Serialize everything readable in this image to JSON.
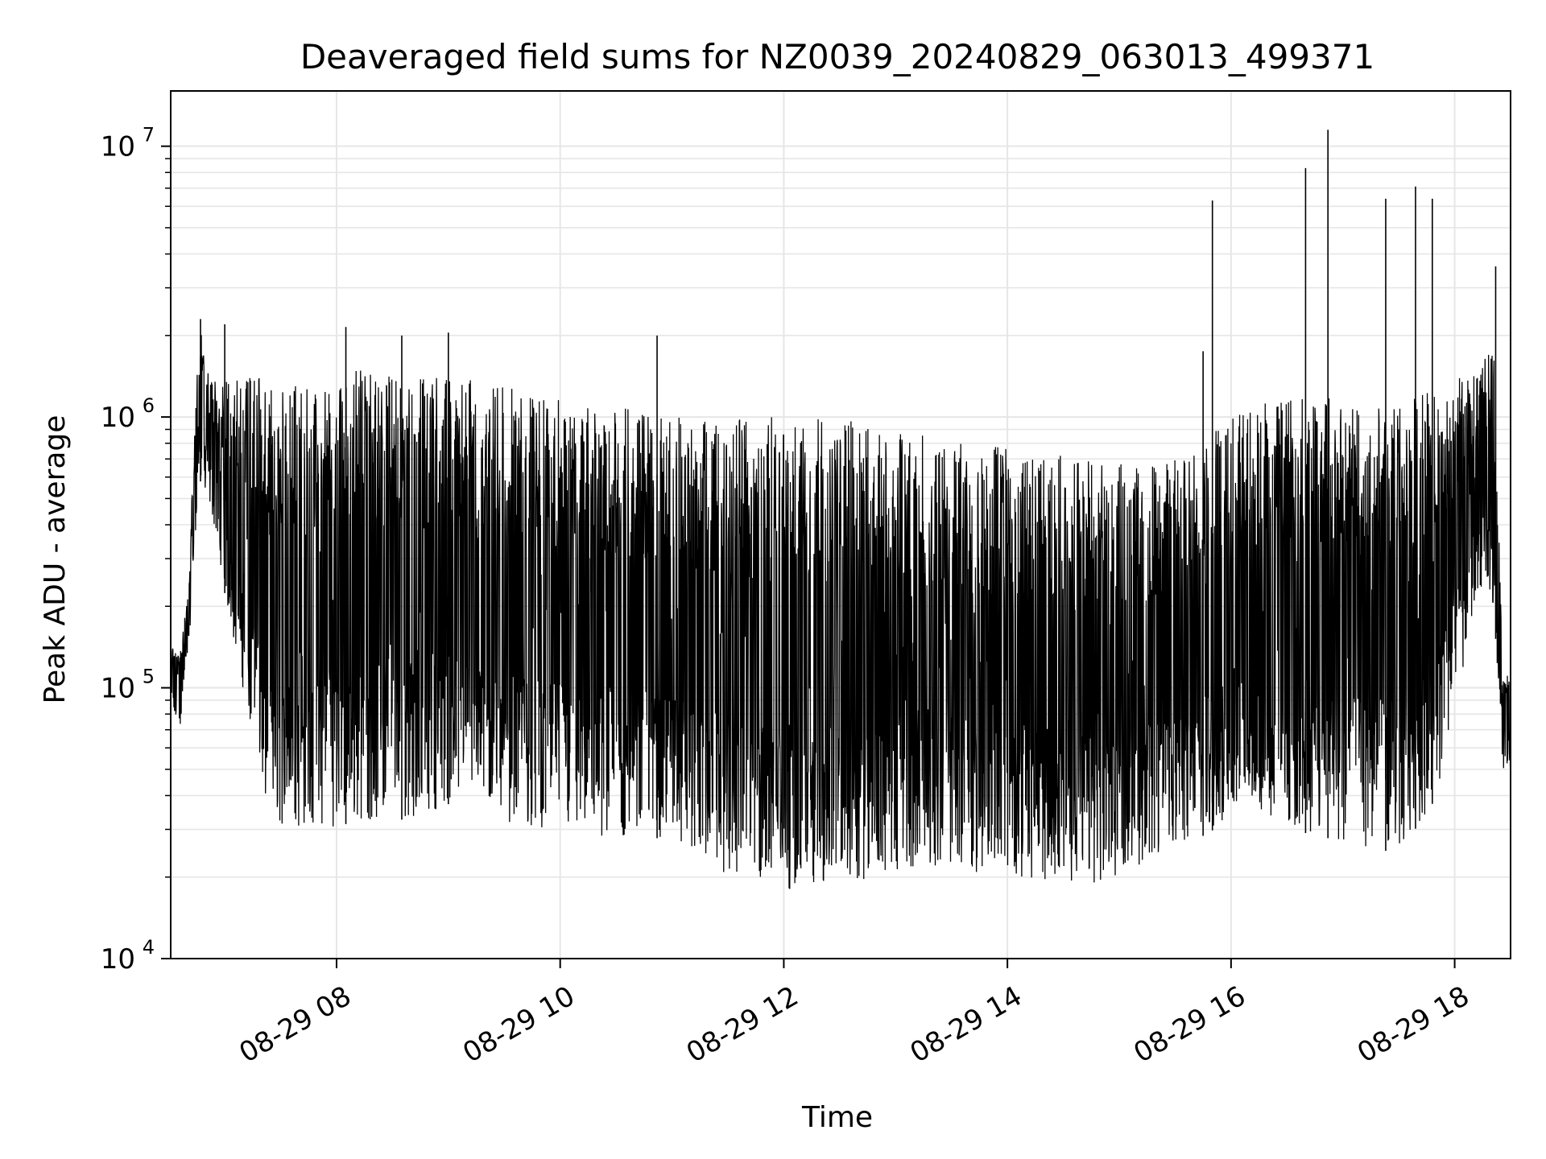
{
  "chart_data": {
    "type": "line",
    "title": "Deaveraged field sums for NZ0039_20240829_063013_499371",
    "xlabel": "Time",
    "ylabel": "Peak ADU - average",
    "yscale": "log",
    "ylim": [
      10000,
      16000000
    ],
    "xlim": [
      "2024-08-29 06:31",
      "2024-08-29 18:30"
    ],
    "grid": true,
    "line_color": "#000000",
    "x_ticks": [
      {
        "value": "2024-08-29 08:00",
        "label": "08-29 08"
      },
      {
        "value": "2024-08-29 10:00",
        "label": "08-29 10"
      },
      {
        "value": "2024-08-29 12:00",
        "label": "08-29 12"
      },
      {
        "value": "2024-08-29 14:00",
        "label": "08-29 14"
      },
      {
        "value": "2024-08-29 16:00",
        "label": "08-29 16"
      },
      {
        "value": "2024-08-29 18:00",
        "label": "08-29 18"
      }
    ],
    "y_ticks": [
      {
        "value": 10000,
        "base": "10",
        "exp": "4"
      },
      {
        "value": 100000,
        "base": "10",
        "exp": "5"
      },
      {
        "value": 1000000,
        "base": "10",
        "exp": "6"
      },
      {
        "value": 10000000,
        "base": "10",
        "exp": "7"
      }
    ],
    "series": [
      {
        "x": [
          "2024-08-29 06:31",
          "2024-08-29 06:36",
          "2024-08-29 06:41",
          "2024-08-29 06:46",
          "2024-08-29 06:51",
          "2024-08-29 06:56",
          "2024-08-29 07:01",
          "2024-08-29 07:11",
          "2024-08-29 07:21",
          "2024-08-29 07:31",
          "2024-08-29 07:51",
          "2024-08-29 08:11",
          "2024-08-29 08:31",
          "2024-08-29 08:51",
          "2024-08-29 09:11",
          "2024-08-29 09:31",
          "2024-08-29 09:51",
          "2024-08-29 10:11",
          "2024-08-29 10:31",
          "2024-08-29 10:51",
          "2024-08-29 11:11",
          "2024-08-29 11:31",
          "2024-08-29 11:51",
          "2024-08-29 12:11",
          "2024-08-29 12:31",
          "2024-08-29 12:51",
          "2024-08-29 13:11",
          "2024-08-29 13:31",
          "2024-08-29 13:51",
          "2024-08-29 14:11",
          "2024-08-29 14:31",
          "2024-08-29 14:51",
          "2024-08-29 15:11",
          "2024-08-29 15:31",
          "2024-08-29 15:51",
          "2024-08-29 16:11",
          "2024-08-29 16:31",
          "2024-08-29 16:51",
          "2024-08-29 17:11",
          "2024-08-29 17:31",
          "2024-08-29 17:51",
          "2024-08-29 18:11",
          "2024-08-29 18:16",
          "2024-08-29 18:21",
          "2024-08-29 18:26",
          "2024-08-29 18:30"
        ],
        "y_low": [
          80000,
          70000,
          150000,
          600000,
          500000,
          350000,
          200000,
          90000,
          40000,
          30000,
          30000,
          32000,
          32000,
          35000,
          40000,
          32000,
          30000,
          28000,
          28000,
          28000,
          25000,
          20000,
          18000,
          18000,
          19000,
          20000,
          22000,
          22000,
          20000,
          20000,
          19000,
          19000,
          22000,
          25000,
          30000,
          35000,
          30000,
          28000,
          25000,
          25000,
          40000,
          200000,
          250000,
          200000,
          50000,
          50000
        ],
        "y_high": [
          150000,
          130000,
          300000,
          2300000,
          1500000,
          1400000,
          1400000,
          1400000,
          1400000,
          1300000,
          1300000,
          1500000,
          1400000,
          1400000,
          1400000,
          1300000,
          1200000,
          1100000,
          1100000,
          1000000,
          1000000,
          1000000,
          1000000,
          1000000,
          1000000,
          900000,
          900000,
          800000,
          800000,
          800000,
          750000,
          700000,
          650000,
          700000,
          900000,
          1100000,
          1200000,
          1200000,
          1100000,
          1100000,
          1300000,
          1500000,
          1700000,
          1700000,
          120000,
          110000
        ],
        "spikes": [
          {
            "x": "2024-08-29 06:47",
            "y": 2300000
          },
          {
            "x": "2024-08-29 07:00",
            "y": 2200000
          },
          {
            "x": "2024-08-29 08:05",
            "y": 2150000
          },
          {
            "x": "2024-08-29 08:35",
            "y": 2000000
          },
          {
            "x": "2024-08-29 09:00",
            "y": 2050000
          },
          {
            "x": "2024-08-29 10:52",
            "y": 2000000
          },
          {
            "x": "2024-08-29 15:45",
            "y": 1750000
          },
          {
            "x": "2024-08-29 15:50",
            "y": 6300000
          },
          {
            "x": "2024-08-29 16:40",
            "y": 8300000
          },
          {
            "x": "2024-08-29 16:52",
            "y": 11500000
          },
          {
            "x": "2024-08-29 17:23",
            "y": 6400000
          },
          {
            "x": "2024-08-29 17:39",
            "y": 7100000
          },
          {
            "x": "2024-08-29 17:48",
            "y": 6400000
          },
          {
            "x": "2024-08-29 18:22",
            "y": 3600000
          }
        ]
      }
    ]
  }
}
